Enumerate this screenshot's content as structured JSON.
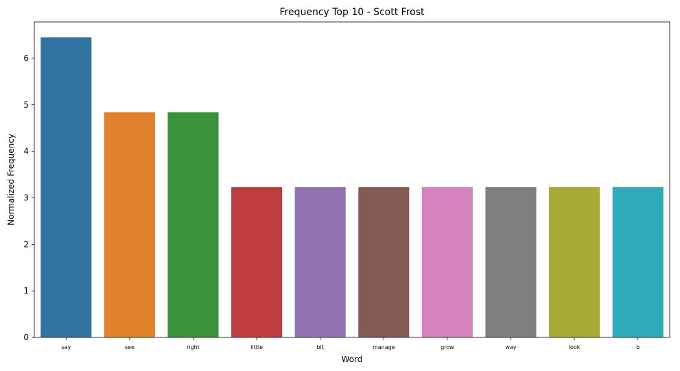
{
  "chart_data": {
    "type": "bar",
    "title": "Frequency Top 10 - Scott Frost",
    "xlabel": "Word",
    "ylabel": "Normalized Frequency",
    "categories": [
      "say",
      "see",
      "right",
      "little",
      "bit",
      "manage",
      "grow",
      "way",
      "look",
      "b"
    ],
    "values": [
      6.45,
      4.84,
      4.84,
      3.23,
      3.23,
      3.23,
      3.23,
      3.23,
      3.23,
      3.23
    ],
    "colors": [
      "#3274a1",
      "#e1812c",
      "#3a923a",
      "#c03d3e",
      "#9372b2",
      "#845b53",
      "#d684bd",
      "#7f7f7f",
      "#a9aa35",
      "#2eaab8"
    ],
    "ylim": [
      0,
      6.78
    ],
    "yticks": [
      0,
      1,
      2,
      3,
      4,
      5,
      6
    ],
    "ytick_labels": [
      "0",
      "1",
      "2",
      "3",
      "4",
      "5",
      "6"
    ],
    "grid": false,
    "legend": "none"
  }
}
